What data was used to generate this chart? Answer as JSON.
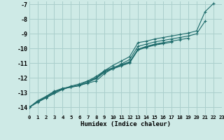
{
  "xlabel": "Humidex (Indice chaleur)",
  "xlim": [
    0,
    23
  ],
  "ylim": [
    -14.5,
    -6.8
  ],
  "yticks": [
    -14,
    -13,
    -12,
    -11,
    -10,
    -9,
    -8,
    -7
  ],
  "xticks": [
    0,
    1,
    2,
    3,
    4,
    5,
    6,
    7,
    8,
    9,
    10,
    11,
    12,
    13,
    14,
    15,
    16,
    17,
    18,
    19,
    20,
    21,
    22,
    23
  ],
  "bg_color": "#ceeae6",
  "grid_color": "#aacfcc",
  "line_color": "#1e6b6b",
  "lines": [
    [
      -14.0,
      -13.65,
      -13.35,
      -13.05,
      -12.75,
      -12.55,
      -12.4,
      -12.2,
      -12.0,
      -11.5,
      -11.15,
      -10.85,
      -10.55,
      -9.6,
      -9.5,
      -9.35,
      -9.25,
      -9.15,
      -9.05,
      -8.95,
      -8.8,
      -7.5,
      -6.95,
      null
    ],
    [
      -14.0,
      -13.65,
      -13.35,
      -13.05,
      -12.78,
      -12.6,
      -12.5,
      -12.35,
      -12.2,
      -11.7,
      -11.35,
      -11.05,
      -10.75,
      -9.85,
      -9.7,
      -9.55,
      -9.45,
      -9.35,
      -9.25,
      -9.15,
      -9.0,
      -8.15,
      null,
      null
    ],
    [
      -14.0,
      -13.6,
      -13.3,
      -12.95,
      -12.72,
      -12.62,
      -12.52,
      -12.3,
      -12.0,
      -11.55,
      -11.35,
      -11.15,
      -10.95,
      -10.05,
      -9.85,
      -9.7,
      -9.6,
      -9.5,
      -9.4,
      -9.3,
      null,
      null,
      null,
      null
    ],
    [
      -14.0,
      -13.6,
      -13.3,
      -12.95,
      -12.72,
      -12.62,
      -12.52,
      -12.3,
      -12.05,
      -11.6,
      -11.38,
      -11.18,
      -10.98,
      -10.1,
      -9.92,
      -9.77,
      -9.67,
      -9.57,
      null,
      null,
      null,
      null,
      null,
      null
    ],
    [
      -14.0,
      -13.55,
      -13.25,
      -12.9,
      -12.7,
      -12.6,
      -12.48,
      -12.2,
      -11.9,
      -11.5,
      -11.3,
      -11.1,
      -10.9,
      -10.05,
      -9.88,
      -9.73,
      -9.63,
      null,
      null,
      null,
      null,
      null,
      null,
      null
    ]
  ]
}
